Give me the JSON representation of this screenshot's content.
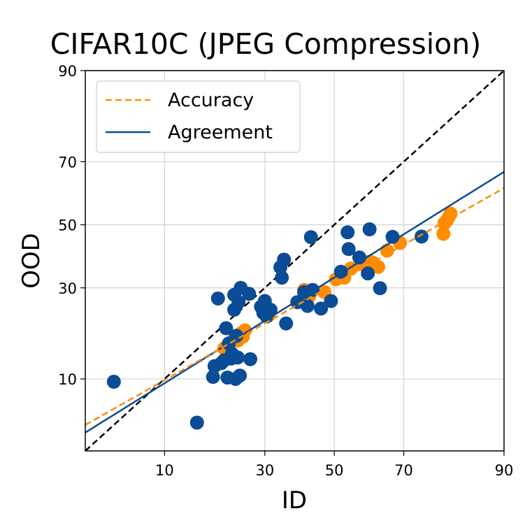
{
  "chart_data": {
    "type": "scatter",
    "title": "CIFAR10C (JPEG Compression)",
    "xlabel": "ID",
    "ylabel": "OOD",
    "scale": "probit",
    "xlim": [
      3,
      90
    ],
    "ylim": [
      3,
      90
    ],
    "x_ticks": [
      "10",
      "30",
      "50",
      "70",
      "90"
    ],
    "y_ticks": [
      "10",
      "30",
      "50",
      "70",
      "90"
    ],
    "grid": true,
    "legend": {
      "position": "top-left",
      "entries": [
        "Accuracy",
        "Agreement"
      ]
    },
    "colors": {
      "accuracy": "#ff8c00",
      "agreement": "#0a4c96",
      "diagonal": "#000000",
      "grid": "#d3d3d3"
    },
    "series": [
      {
        "name": "Accuracy",
        "style": "scatter+dashed-fit",
        "color": "#ff8c00",
        "fit_line": [
          [
            3,
            4.8
          ],
          [
            90,
            62.0
          ]
        ],
        "points": [
          [
            20.3,
            15.2
          ],
          [
            21.2,
            14.0
          ],
          [
            22.5,
            17.2
          ],
          [
            23.3,
            16.8
          ],
          [
            24.0,
            18.3
          ],
          [
            24.5,
            17.6
          ],
          [
            25.0,
            19.0
          ],
          [
            31.0,
            22.6
          ],
          [
            41.0,
            29.4
          ],
          [
            42.5,
            27.6
          ],
          [
            47.0,
            28.8
          ],
          [
            50.5,
            32.5
          ],
          [
            53.0,
            33.0
          ],
          [
            55.0,
            35.8
          ],
          [
            58.5,
            37.2
          ],
          [
            60.5,
            38.0
          ],
          [
            61.5,
            37.6
          ],
          [
            63.0,
            36.3
          ],
          [
            65.5,
            41.5
          ],
          [
            69.0,
            44.0
          ],
          [
            79.5,
            47.0
          ],
          [
            79.7,
            50.5
          ],
          [
            80.2,
            51.4
          ],
          [
            80.6,
            52.5
          ],
          [
            81.0,
            53.7
          ]
        ]
      },
      {
        "name": "Agreement",
        "style": "scatter+solid-fit",
        "color": "#0a4c96",
        "fit_line": [
          [
            3,
            4.2
          ],
          [
            90,
            67.0
          ]
        ],
        "points": [
          [
            4.8,
            9.6
          ],
          [
            15.0,
            5.0
          ],
          [
            18.0,
            10.3
          ],
          [
            18.3,
            12.0
          ],
          [
            19.0,
            27.0
          ],
          [
            19.7,
            12.5
          ],
          [
            20.3,
            13.0
          ],
          [
            20.7,
            19.5
          ],
          [
            21.0,
            10.2
          ],
          [
            21.3,
            16.2
          ],
          [
            21.8,
            13.3
          ],
          [
            22.0,
            14.2
          ],
          [
            22.5,
            24.0
          ],
          [
            22.5,
            28.0
          ],
          [
            22.8,
            10.0
          ],
          [
            23.0,
            17.8
          ],
          [
            23.3,
            13.5
          ],
          [
            23.5,
            26.0
          ],
          [
            23.8,
            10.5
          ],
          [
            24.0,
            30.0
          ],
          [
            26.0,
            28.3
          ],
          [
            26.3,
            13.2
          ],
          [
            29.0,
            24.8
          ],
          [
            29.6,
            23.2
          ],
          [
            30.0,
            26.3
          ],
          [
            30.5,
            22.3
          ],
          [
            31.5,
            24.0
          ],
          [
            34.2,
            36.2
          ],
          [
            34.6,
            33.0
          ],
          [
            35.2,
            38.6
          ],
          [
            35.8,
            20.6
          ],
          [
            39.0,
            26.0
          ],
          [
            41.0,
            28.8
          ],
          [
            42.0,
            25.0
          ],
          [
            43.0,
            45.9
          ],
          [
            43.5,
            29.4
          ],
          [
            46.0,
            24.3
          ],
          [
            49.0,
            26.3
          ],
          [
            52.0,
            34.8
          ],
          [
            54.0,
            47.5
          ],
          [
            54.3,
            42.0
          ],
          [
            57.5,
            39.3
          ],
          [
            60.0,
            34.3
          ],
          [
            60.5,
            48.5
          ],
          [
            63.5,
            29.9
          ],
          [
            67.0,
            46.0
          ],
          [
            74.5,
            46.1
          ]
        ]
      }
    ],
    "reference_line": {
      "style": "dashed",
      "color": "#000000",
      "points": [
        [
          3,
          3
        ],
        [
          90,
          90
        ]
      ]
    }
  }
}
